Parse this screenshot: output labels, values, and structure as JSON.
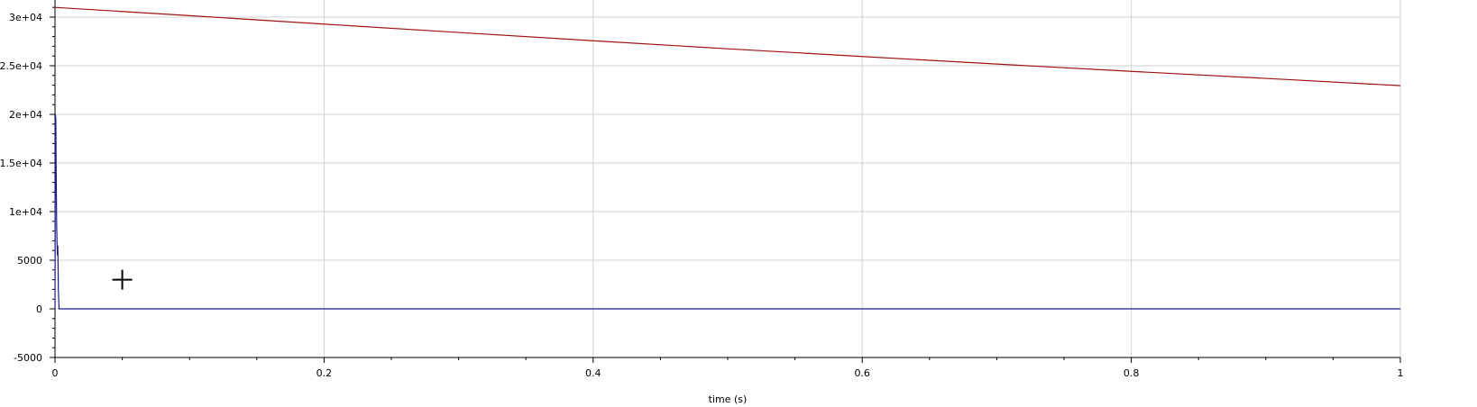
{
  "chart_data": {
    "type": "line",
    "xlabel": "time (s)",
    "ylabel": "",
    "xlim": [
      0,
      1
    ],
    "ylim": [
      -5000,
      31000
    ],
    "grid": true,
    "x_ticks": [
      {
        "value": 0,
        "label": "0"
      },
      {
        "value": 0.2,
        "label": "0.2"
      },
      {
        "value": 0.4,
        "label": "0.4"
      },
      {
        "value": 0.6,
        "label": "0.6"
      },
      {
        "value": 0.8,
        "label": "0.8"
      },
      {
        "value": 1,
        "label": "1"
      }
    ],
    "x_minor_step": 0.05,
    "y_ticks": [
      {
        "value": -5000,
        "label": "-5000"
      },
      {
        "value": 0,
        "label": "0"
      },
      {
        "value": 5000,
        "label": "5000"
      },
      {
        "value": 10000,
        "label": "1e+04"
      },
      {
        "value": 15000,
        "label": "1.5e+04"
      },
      {
        "value": 20000,
        "label": "2e+04"
      },
      {
        "value": 25000,
        "label": "2.5e+04"
      },
      {
        "value": 30000,
        "label": "3e+04"
      }
    ],
    "y_minor_step": 1000,
    "series": [
      {
        "color": "#a01010",
        "x": [
          0,
          0.1,
          0.2,
          0.3,
          0.4,
          0.5,
          0.6,
          0.7,
          0.8,
          0.9,
          1.0
        ],
        "y": [
          31000,
          30150,
          29280,
          28420,
          27570,
          26740,
          25950,
          25170,
          24420,
          23700,
          22950
        ]
      },
      {
        "color": "#1a1a8c",
        "x": [
          0,
          0.0003,
          0.0006,
          0.0009,
          0.0012,
          0.0015,
          0.0018,
          0.0021,
          0.0025,
          0.003,
          0.004,
          0.01,
          0.5,
          1.0
        ],
        "y": [
          0,
          20000,
          19500,
          13500,
          9000,
          6800,
          5500,
          6500,
          2000,
          0,
          0,
          0,
          0,
          0
        ]
      }
    ]
  },
  "cursor": {
    "x": 0.05,
    "y": 3000
  }
}
